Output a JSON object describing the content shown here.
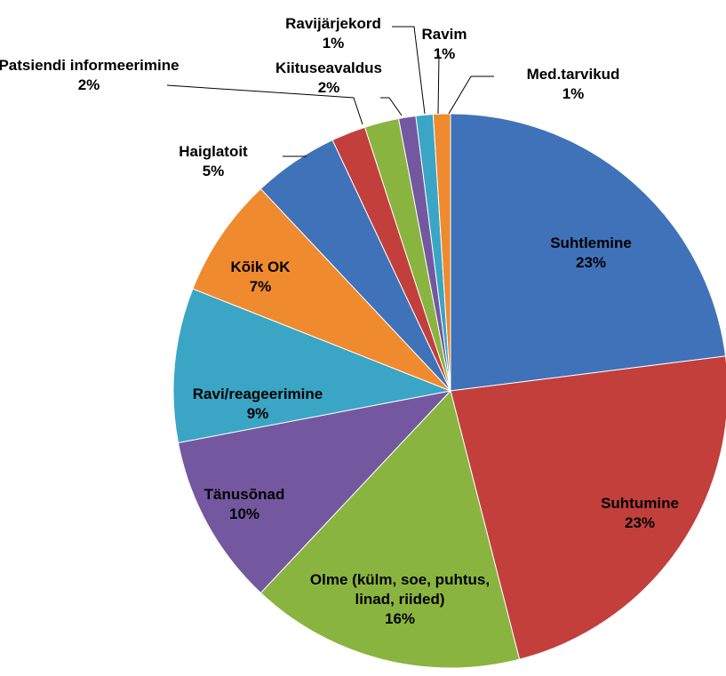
{
  "chart_data": {
    "type": "pie",
    "categories": [
      "Suhtlemine",
      "Suhtumine",
      "Olme (külm, soe, puhtus, linad, riided)",
      "Tänusõnad",
      "Ravi/reageerimine",
      "Kõik OK",
      "Haiglatoit",
      "Patsiendi informeerimine",
      "Kiituseavaldus",
      "Ravijärjekord",
      "Ravim",
      "Med.tarvikud"
    ],
    "values": [
      23,
      23,
      16,
      10,
      9,
      7,
      5,
      2,
      2,
      1,
      1,
      1
    ],
    "value_labels": [
      "23%",
      "23%",
      "16%",
      "10%",
      "9%",
      "7%",
      "5%",
      "2%",
      "2%",
      "1%",
      "1%",
      "1%"
    ],
    "colors": [
      "#3f72b8",
      "#c23f3c",
      "#8ab440",
      "#7358a0",
      "#3aa5c4",
      "#ef8a2e",
      "#3f72b8",
      "#c23f3c",
      "#8ab440",
      "#7358a0",
      "#3aa5c4",
      "#ef8a2e"
    ]
  }
}
